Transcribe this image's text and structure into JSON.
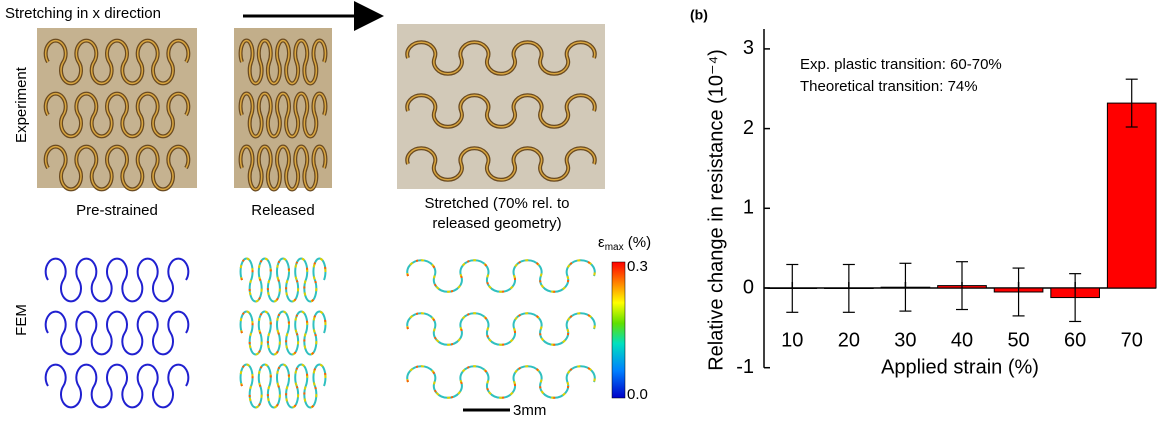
{
  "figure_a": {
    "arrow_text": "Stretching in x direction",
    "row_labels": [
      "Experiment",
      "FEM"
    ],
    "column_labels": [
      "Pre-strained",
      "Released",
      "Stretched (70% rel. to",
      "released geometry)"
    ],
    "colorbar": {
      "symbol": "ε",
      "subscript": "max",
      "unit": " (%)",
      "top": "0.3",
      "bottom": "0.0"
    },
    "scale_bar": "3mm"
  },
  "chart_data": {
    "type": "bar",
    "panel_label": "(b)",
    "y_label": "Relative change in resistance (10⁻⁴)",
    "x_label": "Applied strain (%)",
    "annotations": [
      "Exp. plastic transition:  60-70%",
      "Theoretical transition:  74%"
    ],
    "categories": [
      "10",
      "20",
      "30",
      "40",
      "50",
      "60",
      "70"
    ],
    "values": [
      -0.005,
      -0.005,
      0.01,
      0.03,
      -0.05,
      -0.12,
      2.32
    ],
    "errors": [
      0.3,
      0.3,
      0.3,
      0.3,
      0.3,
      0.3,
      0.3
    ],
    "color": "#ff0000",
    "ylim": [
      -1,
      3.25
    ],
    "yticks": [
      -1,
      0,
      1,
      2,
      3
    ]
  }
}
